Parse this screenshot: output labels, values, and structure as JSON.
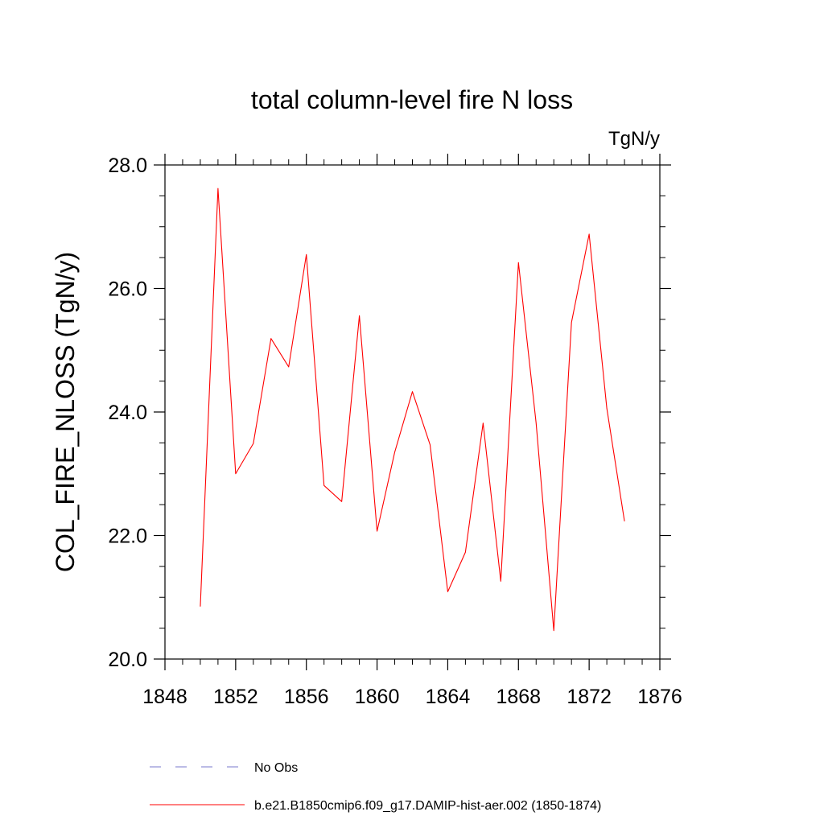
{
  "chart_data": {
    "type": "line",
    "title": "total column-level fire N loss",
    "units_label": "TgN/y",
    "xlabel": "",
    "ylabel": "COL_FIRE_NLOSS  (TgN/y)",
    "xlim": [
      1848,
      1876
    ],
    "ylim": [
      20.0,
      28.0
    ],
    "x_ticks": [
      "1848",
      "1852",
      "1856",
      "1860",
      "1864",
      "1868",
      "1872",
      "1876"
    ],
    "x_tick_values": [
      1848,
      1852,
      1856,
      1860,
      1864,
      1868,
      1872,
      1876
    ],
    "y_ticks": [
      "20.0",
      "22.0",
      "24.0",
      "26.0",
      "28.0"
    ],
    "y_tick_values": [
      20.0,
      22.0,
      24.0,
      26.0,
      28.0
    ],
    "grid": false,
    "legend_position": "bottom",
    "series": [
      {
        "name": "b.e21.B1850cmip6.f09_g17.DAMIP-hist-aer.002 (1850-1874)",
        "color": "#ff0000",
        "style": "solid",
        "x": [
          1850,
          1851,
          1852,
          1853,
          1854,
          1855,
          1856,
          1857,
          1858,
          1859,
          1860,
          1861,
          1862,
          1863,
          1864,
          1865,
          1866,
          1867,
          1868,
          1869,
          1870,
          1871,
          1872,
          1873,
          1874
        ],
        "values": [
          20.85,
          27.62,
          23.0,
          23.49,
          25.19,
          24.73,
          26.55,
          22.81,
          22.55,
          25.56,
          22.07,
          23.35,
          24.33,
          23.47,
          21.09,
          21.73,
          23.82,
          21.26,
          26.42,
          23.82,
          20.46,
          25.45,
          26.88,
          24.06,
          22.23
        ]
      }
    ],
    "legend": [
      {
        "label": "No Obs",
        "color": "#7777cc",
        "style": "dashed"
      },
      {
        "label": "b.e21.B1850cmip6.f09_g17.DAMIP-hist-aer.002 (1850-1874)",
        "color": "#ff0000",
        "style": "solid"
      }
    ]
  }
}
